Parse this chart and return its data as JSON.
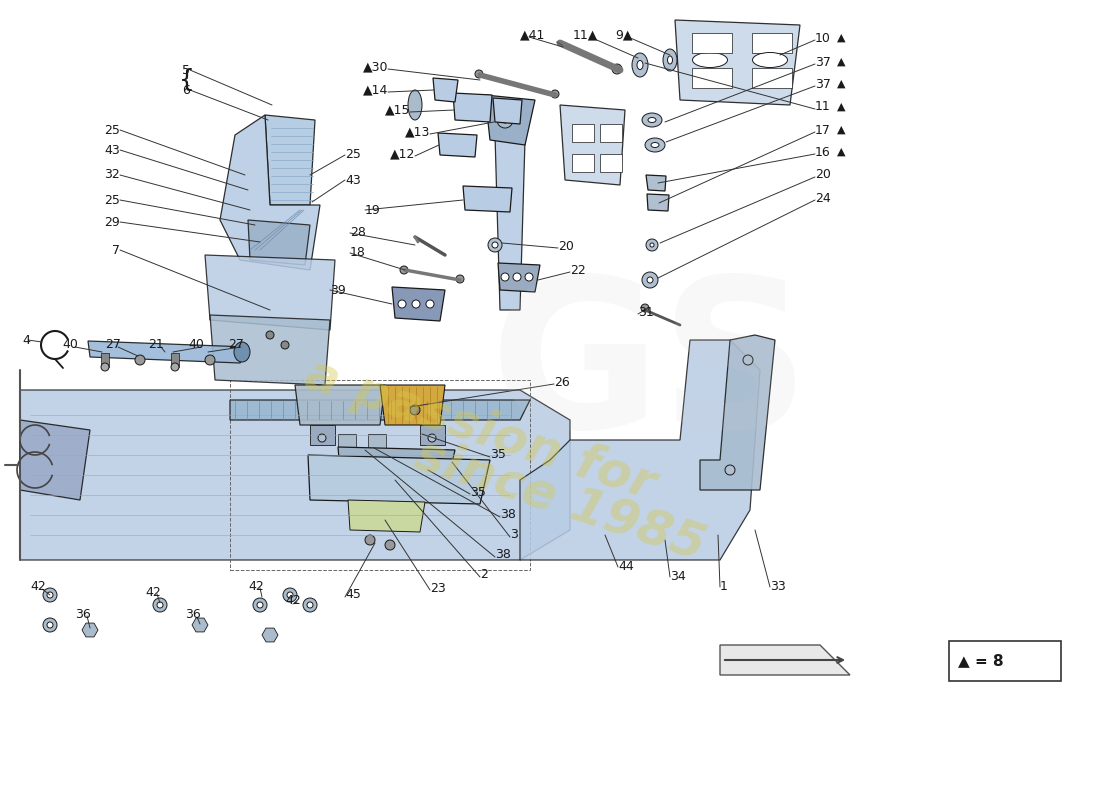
{
  "bg_color": "#ffffff",
  "part_color_light": "#b8cce4",
  "part_color_mid": "#7fafd6",
  "part_color_dark": "#4a7ab5",
  "line_color": "#1a1a1a",
  "text_color": "#1a1a1a",
  "watermark_color": "#d4c84a",
  "legend_text": "▲ = 8"
}
